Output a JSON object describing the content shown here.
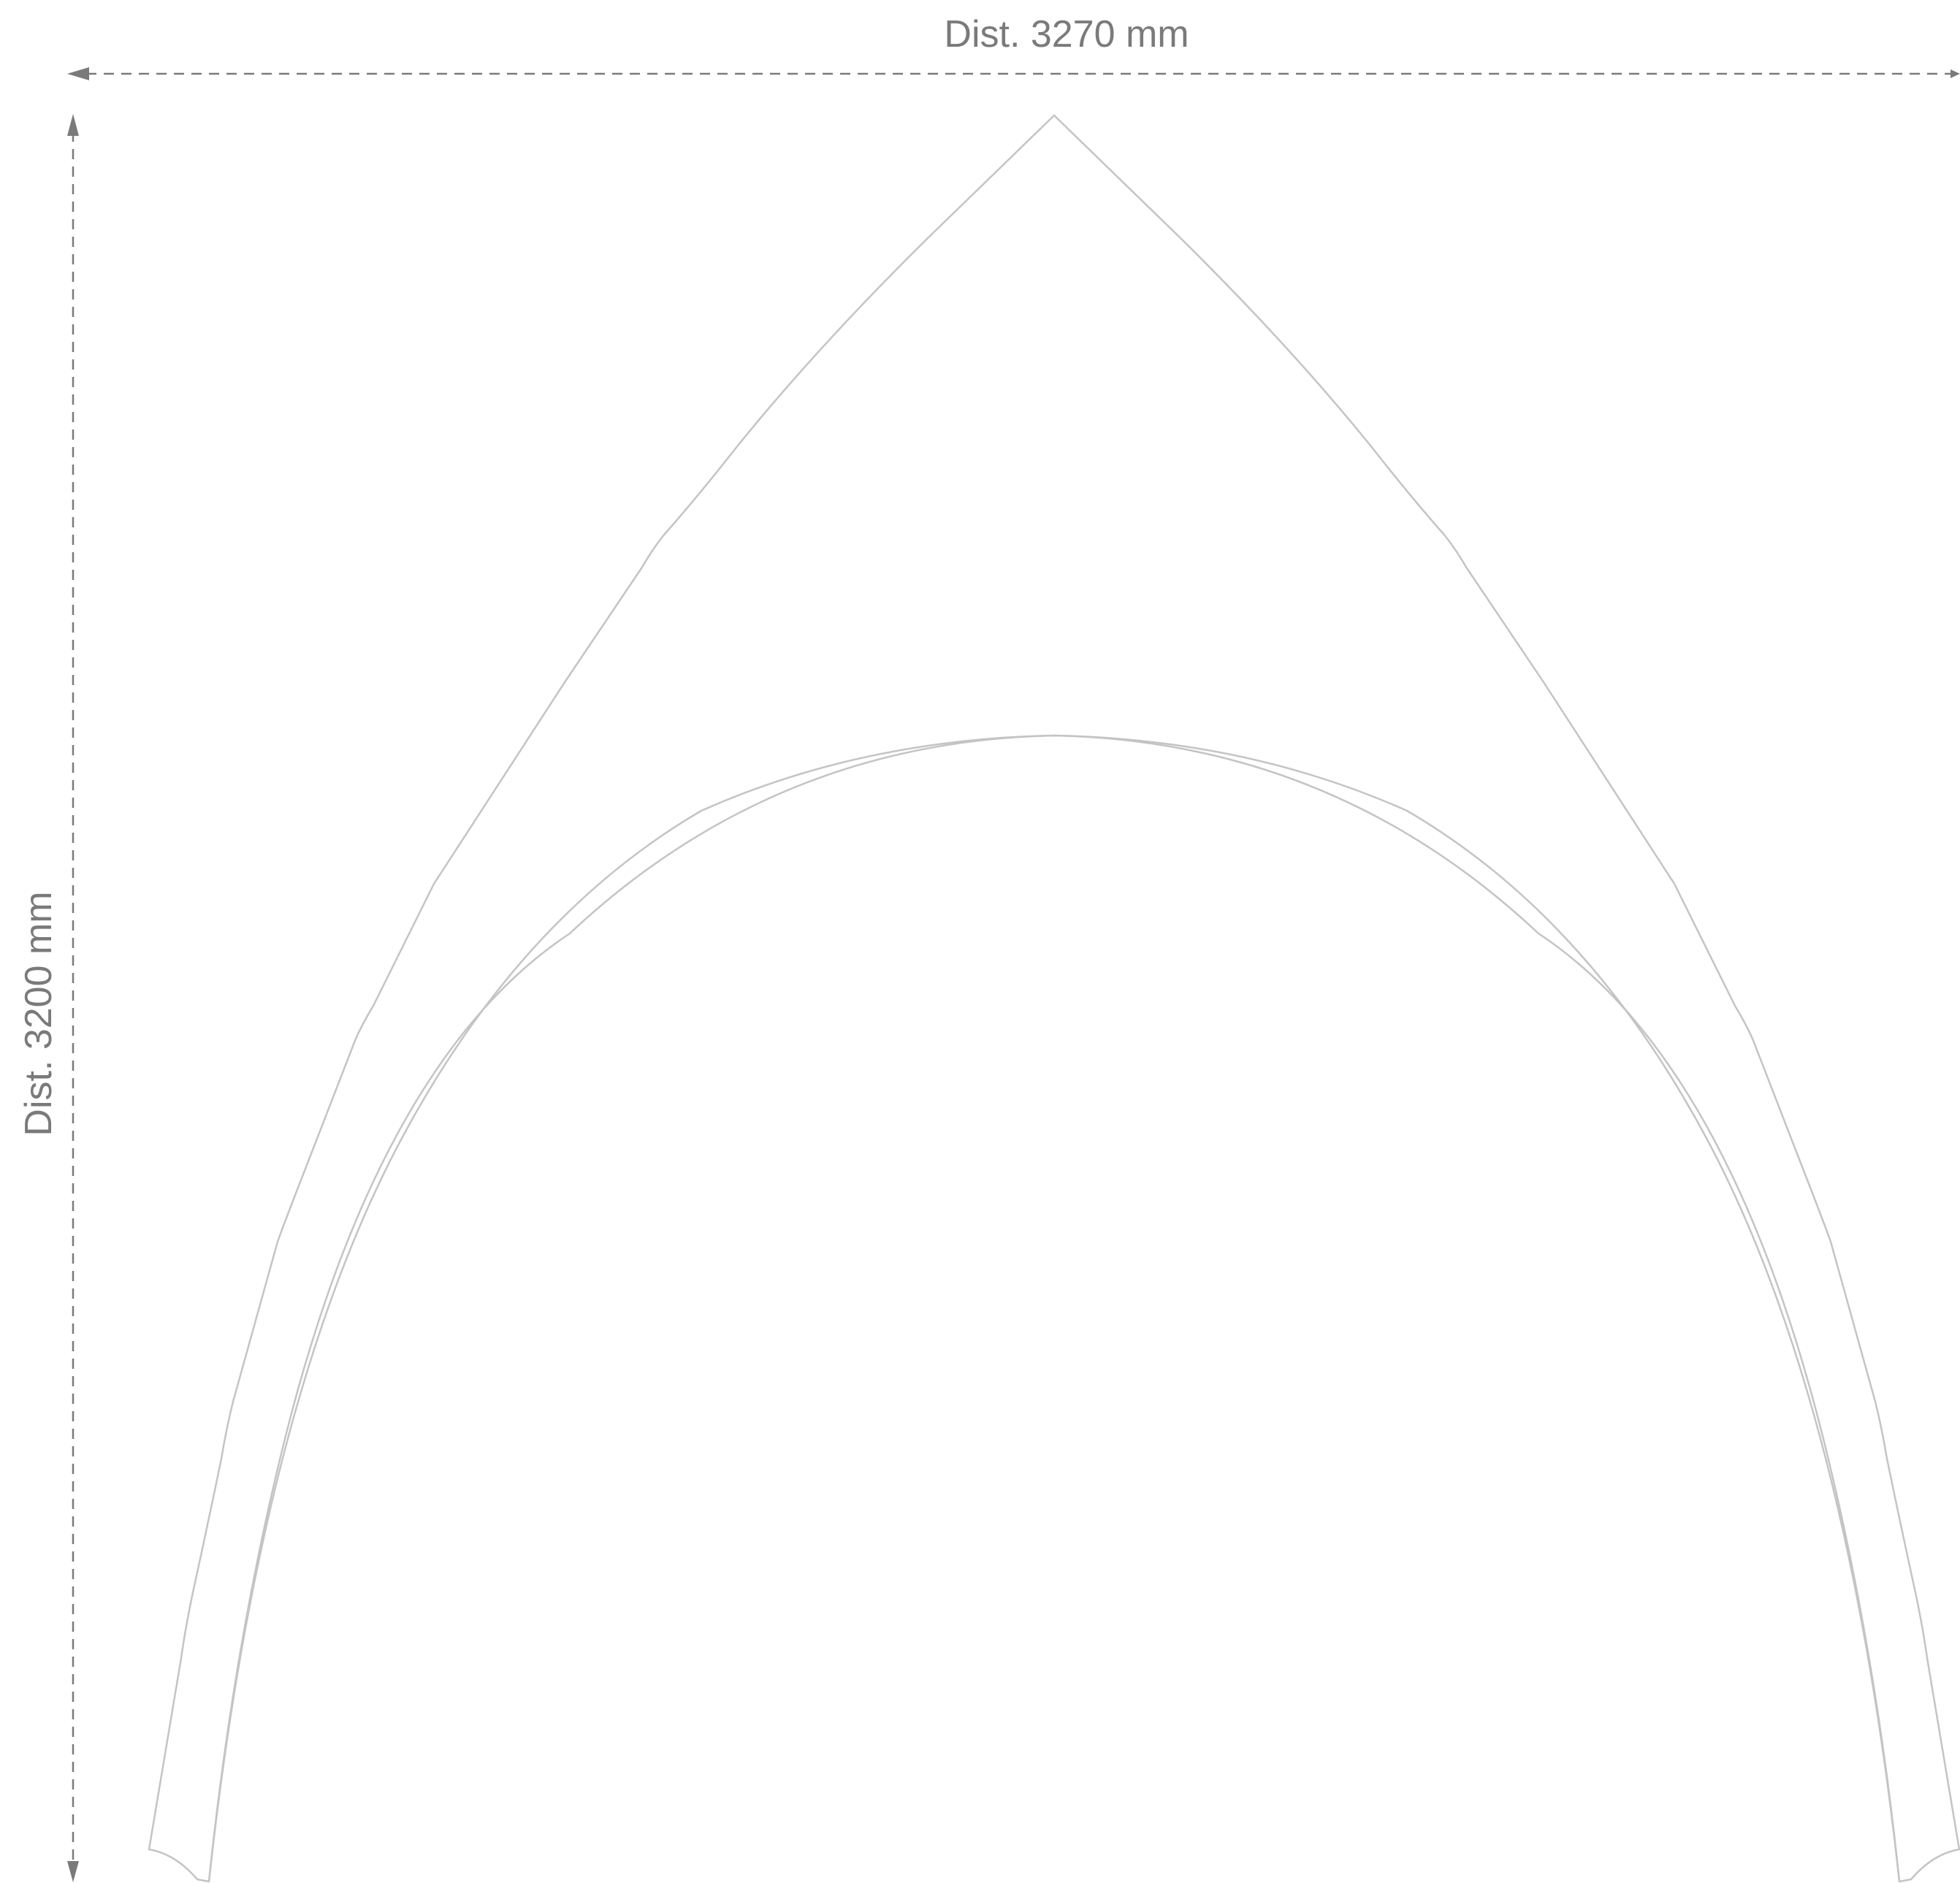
{
  "dimensions": {
    "width_label": "Dist. 3270 mm",
    "height_label": "Dist. 3200 mm"
  },
  "colors": {
    "dimension": "#7a7a7a",
    "outline": "#c4c4c4",
    "background": "#ffffff"
  }
}
